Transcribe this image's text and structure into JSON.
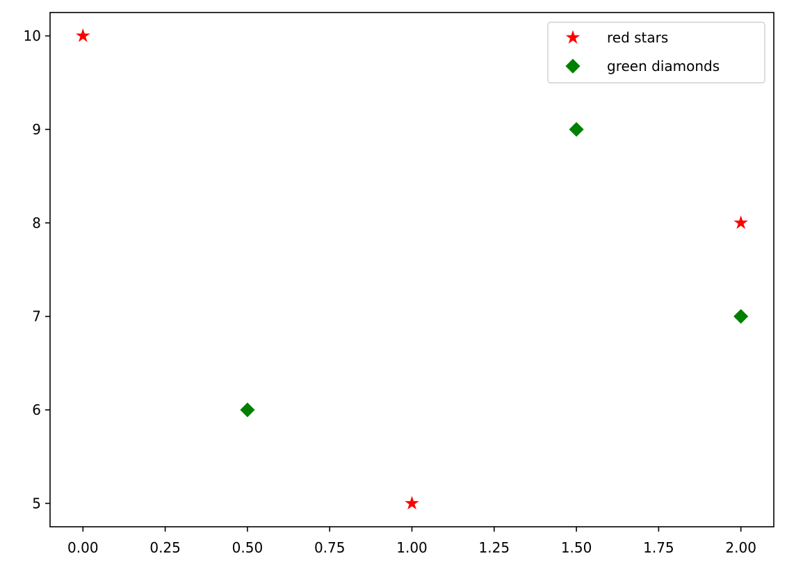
{
  "chart_data": {
    "type": "scatter",
    "title": "",
    "xlabel": "",
    "ylabel": "",
    "xlim": [
      -0.1,
      2.1
    ],
    "ylim": [
      4.75,
      10.25
    ],
    "x_ticks": [
      0.0,
      0.25,
      0.5,
      0.75,
      1.0,
      1.25,
      1.5,
      1.75,
      2.0
    ],
    "x_tick_labels": [
      "0.00",
      "0.25",
      "0.50",
      "0.75",
      "1.00",
      "1.25",
      "1.50",
      "1.75",
      "2.00"
    ],
    "y_ticks": [
      5,
      6,
      7,
      8,
      9,
      10
    ],
    "y_tick_labels": [
      "5",
      "6",
      "7",
      "8",
      "9",
      "10"
    ],
    "grid": false,
    "legend_position": "top-right",
    "series": [
      {
        "name": "red stars",
        "marker": "star",
        "color": "#ff0000",
        "points": [
          {
            "x": 0.0,
            "y": 10
          },
          {
            "x": 1.0,
            "y": 5
          },
          {
            "x": 2.0,
            "y": 8
          }
        ]
      },
      {
        "name": "green diamonds",
        "marker": "diamond",
        "color": "#008000",
        "points": [
          {
            "x": 0.5,
            "y": 6
          },
          {
            "x": 1.5,
            "y": 9
          },
          {
            "x": 2.0,
            "y": 7
          }
        ]
      }
    ]
  }
}
